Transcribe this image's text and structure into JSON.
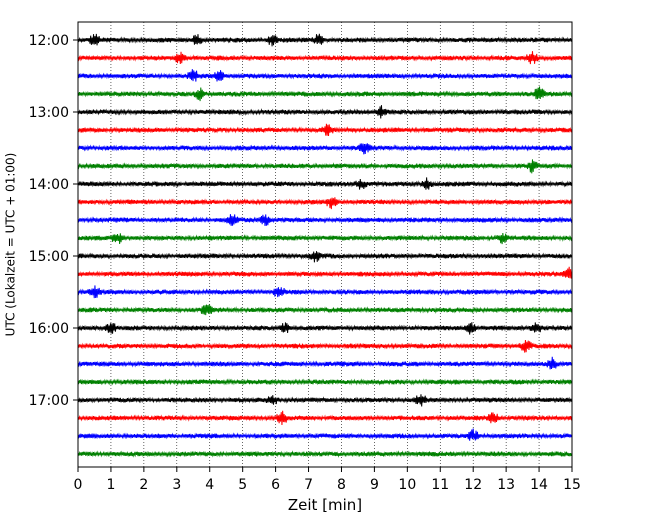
{
  "chart_data": {
    "type": "line",
    "subtype": "helicorder",
    "xlabel": "Zeit  [min]",
    "ylabel": "UTC (Lokalzeit = UTC + 01:00)",
    "xlim": [
      0,
      15
    ],
    "x_ticks": [
      "0",
      "1",
      "2",
      "3",
      "4",
      "5",
      "6",
      "7",
      "8",
      "9",
      "10",
      "11",
      "12",
      "13",
      "14",
      "15"
    ],
    "x_grid": "dotted vertical lines at each minute",
    "traces_per_hour": 4,
    "trace_interval_min": 15,
    "hour_labels": [
      "12:00",
      "13:00",
      "14:00",
      "15:00",
      "16:00",
      "17:00"
    ],
    "trace_colors": [
      "#000000",
      "#ff0000",
      "#0000ff",
      "#008000"
    ],
    "rows": [
      {
        "time": "12:00",
        "color": "#000000",
        "events_min": [
          0.5,
          3.6,
          5.9,
          7.3
        ]
      },
      {
        "time": "12:15",
        "color": "#ff0000",
        "events_min": [
          3.1,
          13.8
        ]
      },
      {
        "time": "12:30",
        "color": "#0000ff",
        "events_min": [
          3.5,
          4.3
        ]
      },
      {
        "time": "12:45",
        "color": "#008000",
        "events_min": [
          3.7,
          14.0
        ]
      },
      {
        "time": "13:00",
        "color": "#000000",
        "events_min": [
          9.2
        ]
      },
      {
        "time": "13:15",
        "color": "#ff0000",
        "events_min": [
          7.6
        ]
      },
      {
        "time": "13:30",
        "color": "#0000ff",
        "events_min": [
          8.7
        ]
      },
      {
        "time": "13:45",
        "color": "#008000",
        "events_min": [
          13.8
        ]
      },
      {
        "time": "14:00",
        "color": "#000000",
        "events_min": [
          8.6,
          10.6
        ]
      },
      {
        "time": "14:15",
        "color": "#ff0000",
        "events_min": [
          7.7
        ]
      },
      {
        "time": "14:30",
        "color": "#0000ff",
        "events_min": [
          4.7,
          5.7
        ]
      },
      {
        "time": "14:45",
        "color": "#008000",
        "events_min": [
          1.2,
          12.9
        ]
      },
      {
        "time": "15:00",
        "color": "#000000",
        "events_min": [
          7.2
        ]
      },
      {
        "time": "15:15",
        "color": "#ff0000",
        "events_min": [
          14.9
        ]
      },
      {
        "time": "15:30",
        "color": "#0000ff",
        "events_min": [
          0.5,
          6.1
        ]
      },
      {
        "time": "15:45",
        "color": "#008000",
        "events_min": [
          3.9
        ]
      },
      {
        "time": "16:00",
        "color": "#000000",
        "events_min": [
          1.0,
          6.3,
          11.9,
          13.9
        ]
      },
      {
        "time": "16:15",
        "color": "#ff0000",
        "events_min": [
          13.6
        ]
      },
      {
        "time": "16:30",
        "color": "#0000ff",
        "events_min": [
          14.4
        ]
      },
      {
        "time": "16:45",
        "color": "#008000",
        "events_min": []
      },
      {
        "time": "17:00",
        "color": "#000000",
        "events_min": [
          5.9,
          10.4
        ]
      },
      {
        "time": "17:15",
        "color": "#ff0000",
        "events_min": [
          6.2,
          12.6
        ]
      },
      {
        "time": "17:30",
        "color": "#0000ff",
        "events_min": [
          12.0
        ]
      },
      {
        "time": "17:45",
        "color": "#008000",
        "events_min": []
      }
    ]
  }
}
